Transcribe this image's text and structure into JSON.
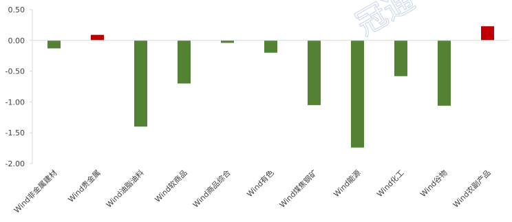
{
  "chart_data": {
    "type": "bar",
    "title": "",
    "xlabel": "",
    "ylabel": "",
    "ylim": [
      -2.0,
      0.5
    ],
    "yticks": [
      "0.50",
      "0.00",
      "-0.50",
      "-1.00",
      "-1.50",
      "-2.00"
    ],
    "grid": false,
    "legend": "none",
    "categories": [
      "Wind非金属建材",
      "Wind贵金属",
      "Wind油脂油料",
      "Wind软商品",
      "Wind商品综合",
      "Wind有色",
      "Wind煤焦钢矿",
      "Wind能源",
      "Wind化工",
      "Wind谷物",
      "Wind农副产品"
    ],
    "values": [
      -0.13,
      0.09,
      -1.4,
      -0.7,
      -0.04,
      -0.2,
      -1.05,
      -1.74,
      -0.58,
      -1.06,
      0.23
    ],
    "colors": {
      "positive": "#c00000",
      "negative": "#548235"
    }
  },
  "watermark": {
    "text": "冠通"
  }
}
